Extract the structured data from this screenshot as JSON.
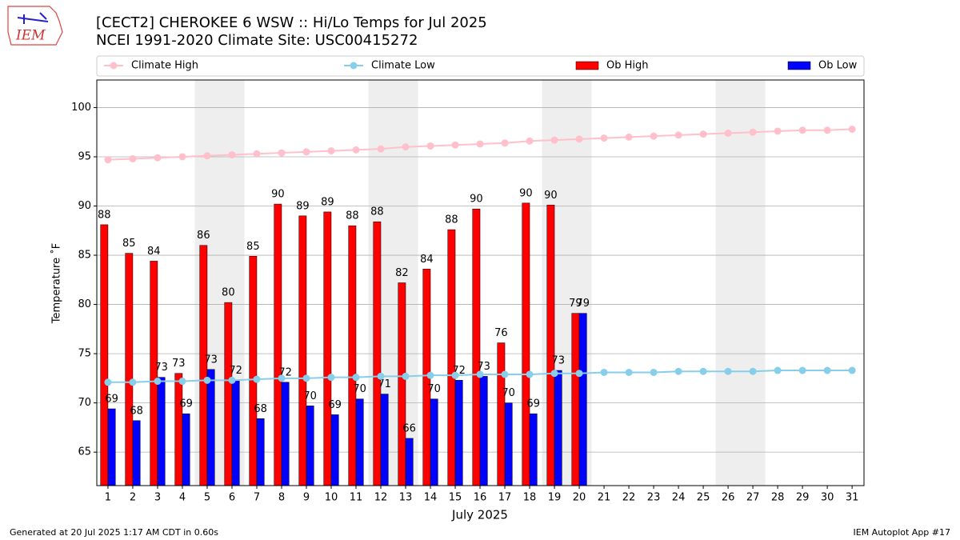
{
  "logo_text": "IEM",
  "footer_left": "Generated at 20 Jul 2025 1:17 AM CDT in 0.60s",
  "footer_right": "IEM Autoplot App #17",
  "chart_data": {
    "type": "bar",
    "title": "[CECT2] CHEROKEE 6 WSW :: Hi/Lo Temps for Jul 2025",
    "subtitle": "NCEI 1991-2020 Climate Site: USC00415272",
    "x_label": "July 2025",
    "y_label": "Temperature ˚F",
    "x": [
      1,
      2,
      3,
      4,
      5,
      6,
      7,
      8,
      9,
      10,
      11,
      12,
      13,
      14,
      15,
      16,
      17,
      18,
      19,
      20,
      21,
      22,
      23,
      24,
      25,
      26,
      27,
      28,
      29,
      30,
      31
    ],
    "xlim": [
      0.55,
      31.48
    ],
    "xticks": [
      1,
      2,
      3,
      4,
      5,
      6,
      7,
      8,
      9,
      10,
      11,
      12,
      13,
      14,
      15,
      16,
      17,
      18,
      19,
      20,
      21,
      22,
      23,
      24,
      25,
      26,
      27,
      28,
      29,
      30,
      31
    ],
    "ylim": [
      61.6,
      102.8
    ],
    "yticks": [
      65,
      70,
      75,
      80,
      85,
      90,
      95,
      100
    ],
    "grid": true,
    "legend": "top",
    "shaded_ranges": [
      [
        4.5,
        6.5
      ],
      [
        11.5,
        13.5
      ],
      [
        18.5,
        20.5
      ],
      [
        25.5,
        27.5
      ]
    ],
    "shade_color": "#eeeeee",
    "series": [
      {
        "name": "Climate High",
        "kind": "line",
        "color": "#ffc0cb",
        "values": [
          94.7,
          94.8,
          94.9,
          95.0,
          95.1,
          95.2,
          95.3,
          95.4,
          95.5,
          95.6,
          95.7,
          95.8,
          96.0,
          96.1,
          96.2,
          96.3,
          96.4,
          96.6,
          96.7,
          96.8,
          96.9,
          97.0,
          97.1,
          97.2,
          97.3,
          97.4,
          97.5,
          97.6,
          97.7,
          97.7,
          97.8
        ]
      },
      {
        "name": "Climate Low",
        "kind": "line",
        "color": "#87ceeb",
        "values": [
          72.1,
          72.1,
          72.2,
          72.2,
          72.3,
          72.3,
          72.4,
          72.5,
          72.5,
          72.6,
          72.6,
          72.7,
          72.7,
          72.8,
          72.8,
          72.9,
          72.9,
          72.9,
          73.0,
          73.0,
          73.1,
          73.1,
          73.1,
          73.2,
          73.2,
          73.2,
          73.2,
          73.3,
          73.3,
          73.3,
          73.3
        ]
      },
      {
        "name": "Ob High",
        "kind": "bar",
        "color": "#ff0000",
        "values": [
          88.1,
          85.2,
          84.4,
          73.0,
          86.0,
          80.2,
          84.9,
          90.2,
          89.0,
          89.4,
          88.0,
          88.4,
          82.2,
          83.6,
          87.6,
          89.7,
          76.1,
          90.3,
          90.1,
          79.1,
          null,
          null,
          null,
          null,
          null,
          null,
          null,
          null,
          null,
          null,
          null
        ],
        "value_labels": [
          "88",
          "85",
          "84",
          "73",
          "86",
          "80",
          "85",
          "90",
          "89",
          "89",
          "88",
          "88",
          "82",
          "84",
          "88",
          "90",
          "76",
          "90",
          "90",
          "79",
          null,
          null,
          null,
          null,
          null,
          null,
          null,
          null,
          null,
          null,
          null
        ]
      },
      {
        "name": "Ob Low",
        "kind": "bar",
        "color": "#0000ff",
        "values": [
          69.4,
          68.2,
          72.6,
          68.9,
          73.4,
          72.3,
          68.4,
          72.1,
          69.7,
          68.8,
          70.4,
          70.9,
          66.4,
          70.4,
          72.3,
          72.7,
          70.0,
          68.9,
          73.3,
          79.1,
          null,
          null,
          null,
          null,
          null,
          null,
          null,
          null,
          null,
          null,
          null
        ],
        "value_labels": [
          "69",
          "68",
          "73",
          "69",
          "73",
          "72",
          "68",
          "72",
          "70",
          "69",
          "70",
          "71",
          "66",
          "70",
          "72",
          "73",
          "70",
          "69",
          "73",
          "79",
          null,
          null,
          null,
          null,
          null,
          null,
          null,
          null,
          null,
          null,
          null
        ]
      }
    ]
  }
}
